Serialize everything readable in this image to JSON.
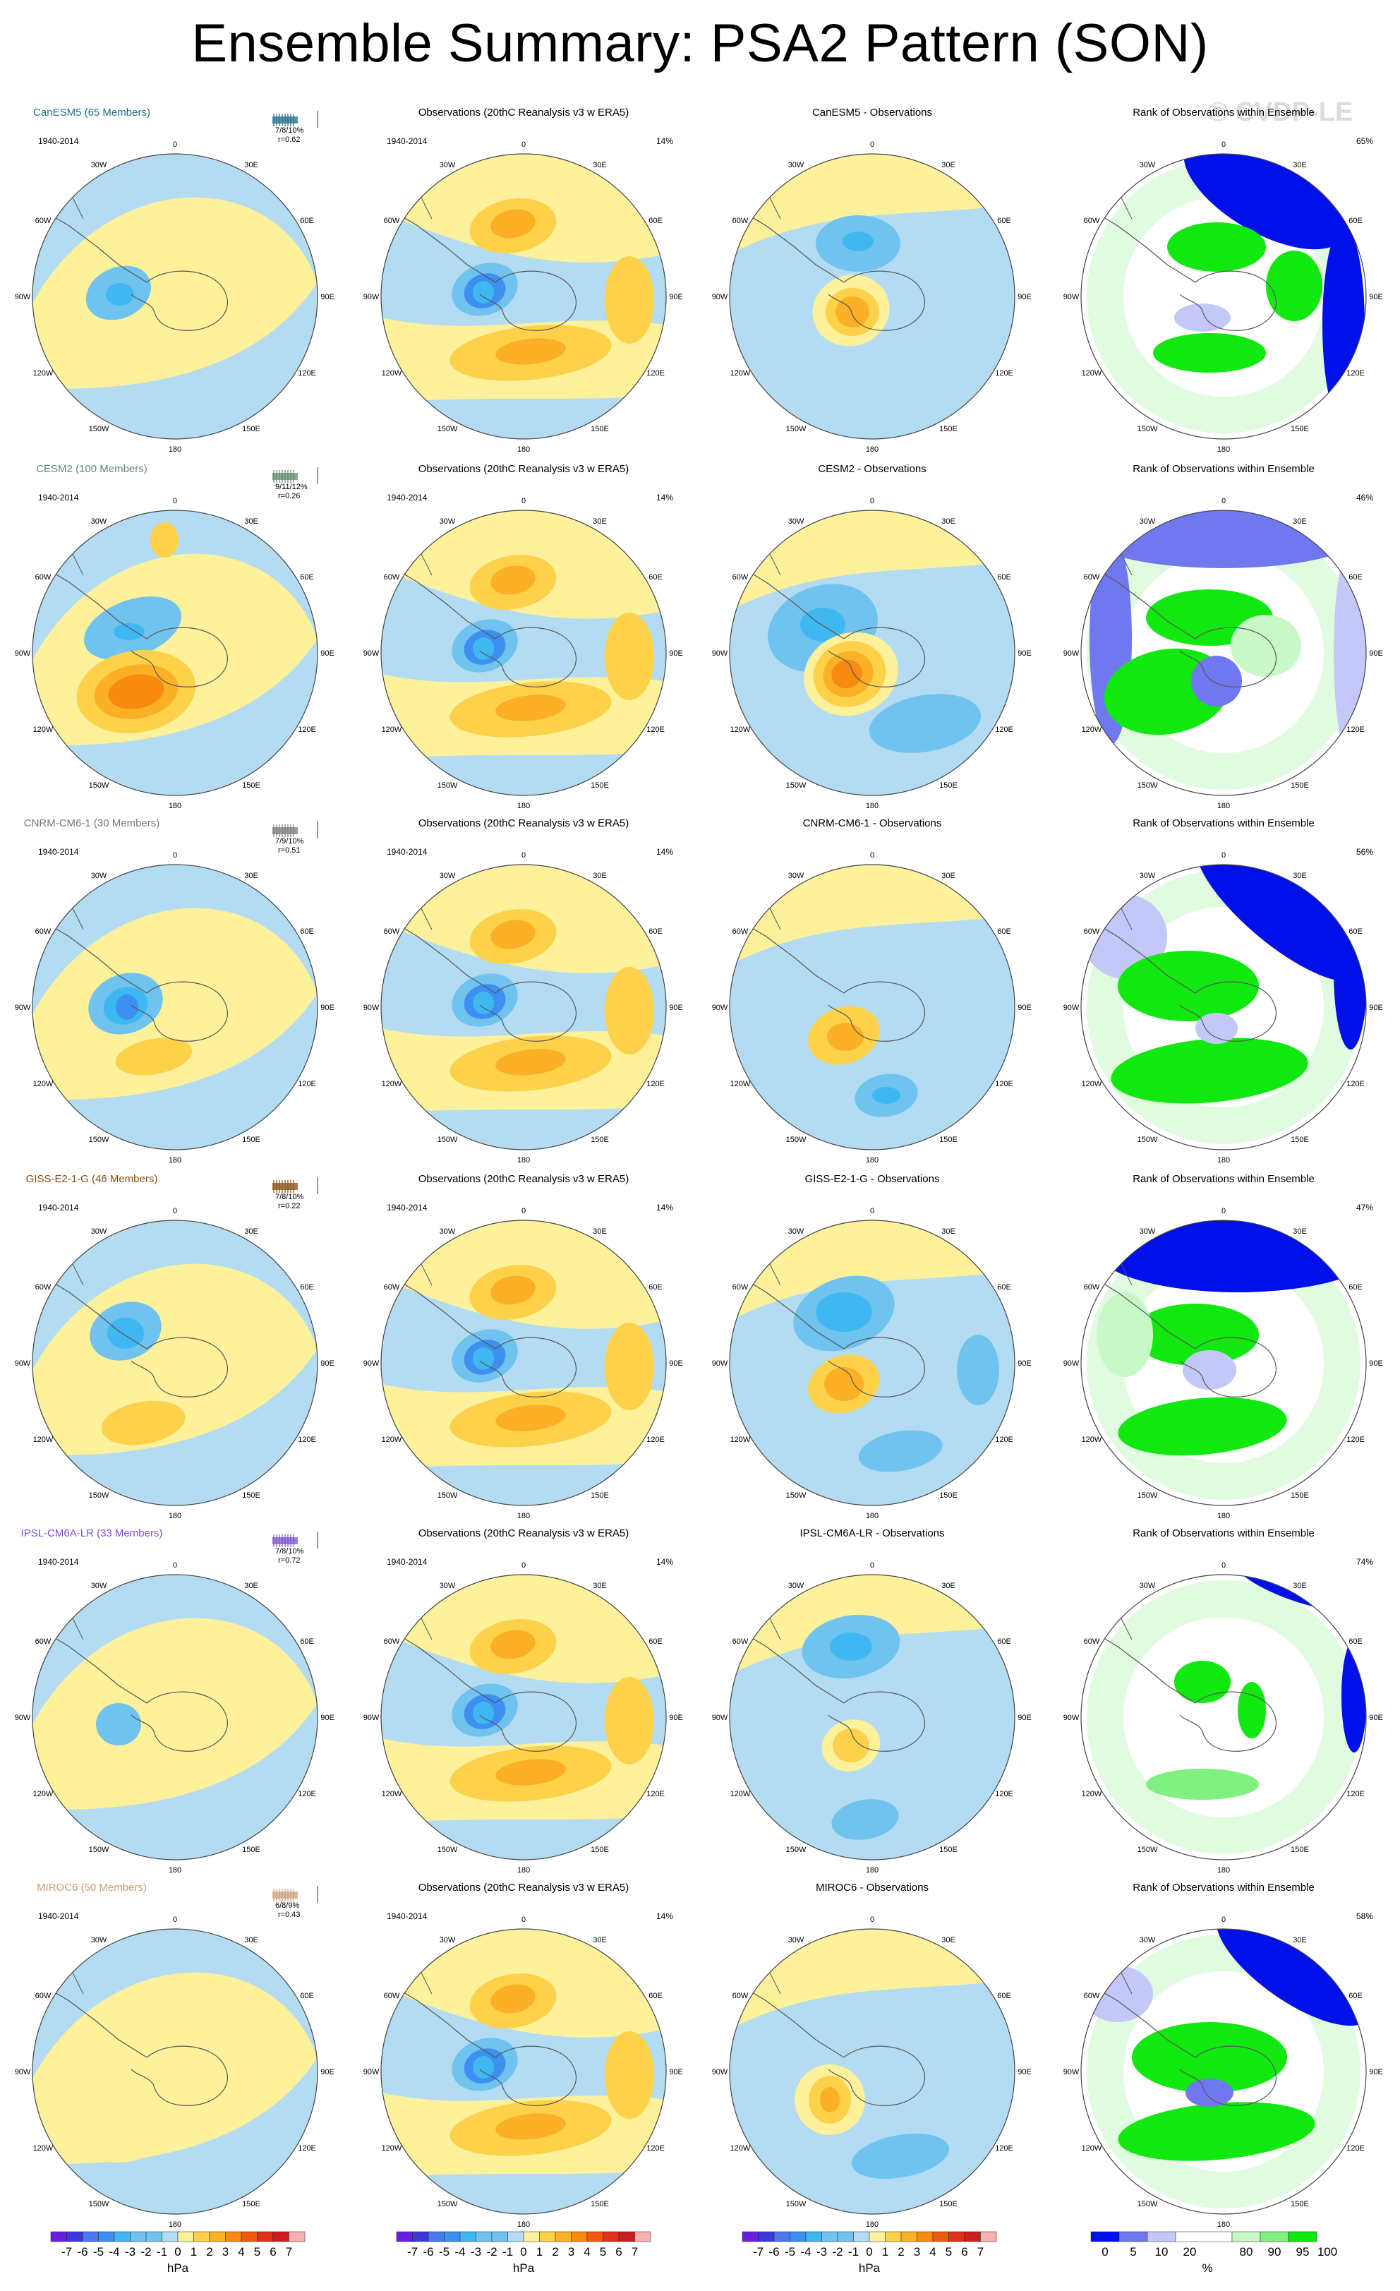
{
  "title": "Ensemble Summary: PSA2 Pattern (SON)",
  "watermark": "© CVDP-LE",
  "years": "1940-2014",
  "obs_title": "Observations (20thC Reanalysis v3 w ERA5)",
  "rank_title": "Rank of Observations within Ensemble",
  "obs_pct": "14%",
  "longitude_labels": [
    "0",
    "30E",
    "60E",
    "90E",
    "120E",
    "150E",
    "180",
    "150W",
    "120W",
    "90W",
    "60W",
    "30W"
  ],
  "rows": [
    {
      "model": "CanESM5",
      "model_title": "CanESM5 (65 Members)",
      "model_color": "#1f6f8b",
      "stats": "7/8/10%",
      "corr": "r=0.62",
      "diff_title": "CanESM5 - Observations",
      "rank_pct": "65%"
    },
    {
      "model": "CESM2",
      "model_title": "CESM2 (100 Members)",
      "model_color": "#5f8a6a",
      "stats": "9/11/12%",
      "corr": "r=0.26",
      "diff_title": "CESM2 - Observations",
      "rank_pct": "46%"
    },
    {
      "model": "CNRM-CM6-1",
      "model_title": "CNRM-CM6-1 (30 Members)",
      "model_color": "#7a7a7a",
      "stats": "7/9/10%",
      "corr": "r=0.51",
      "diff_title": "CNRM-CM6-1 - Observations",
      "rank_pct": "56%"
    },
    {
      "model": "GISS-E2-1-G",
      "model_title": "GISS-E2-1-G (46 Members)",
      "model_color": "#8b4a12",
      "stats": "7/8/10%",
      "corr": "r=0.22",
      "diff_title": "GISS-E2-1-G - Observations",
      "rank_pct": "47%"
    },
    {
      "model": "IPSL-CM6A-LR",
      "model_title": "IPSL-CM6A-LR (33 Members)",
      "model_color": "#7b4fd6",
      "stats": "7/8/10%",
      "corr": "r=0.72",
      "diff_title": "IPSL-CM6A-LR - Observations",
      "rank_pct": "74%"
    },
    {
      "model": "MIROC6",
      "model_title": "MIROC6 (50 Members)",
      "model_color": "#c8a07a",
      "stats": "6/8/9%",
      "corr": "r=0.43",
      "diff_title": "MIROC6 - Observations",
      "rank_pct": "58%"
    }
  ],
  "colors": {
    "neg7": "#6a1fe0",
    "neg6": "#3a3ad8",
    "neg5": "#4a78ee",
    "neg4": "#3d8ff0",
    "neg3": "#3fb8f2",
    "neg2": "#6fc3ee",
    "neg1": "#b3dcf2",
    "pos1": "#fdf19c",
    "pos2": "#fdd24a",
    "pos3": "#fbb026",
    "pos4": "#f88a12",
    "pos5": "#ee5a10",
    "pos6": "#e0301a",
    "pos7": "#cc1e1e",
    "pos8": "#f7b0b0",
    "rank_dark_blue": "#0010e8",
    "rank_blue": "#7078f0",
    "rank_light_blue": "#c4c8f8",
    "rank_white": "#ffffff",
    "rank_light_green": "#c8f8c8",
    "rank_mid_green": "#80f080",
    "rank_green": "#10e810"
  },
  "chart_data": {
    "type": "heatmap",
    "projection": "south polar stereographic",
    "variable": "PSA2 Pattern (SON)",
    "colorbar_hpa": {
      "ticks": [
        "-7",
        "-6",
        "-5",
        "-4",
        "-3",
        "-2",
        "-1",
        "0",
        "1",
        "2",
        "3",
        "4",
        "5",
        "6",
        "7"
      ],
      "unit": "hPa"
    },
    "colorbar_rank": {
      "ticks": [
        "0",
        "5",
        "10",
        "20",
        "80",
        "90",
        "95",
        "100"
      ],
      "unit": "%"
    }
  }
}
